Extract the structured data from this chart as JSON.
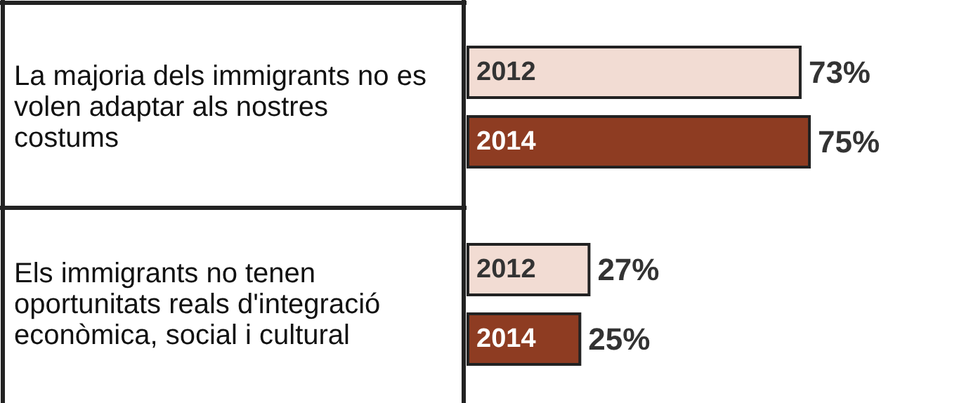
{
  "chart_data": {
    "type": "bar",
    "orientation": "horizontal",
    "categories": [
      "La majoria dels immigrants no es volen adaptar als nostres costums",
      "Els immigrants no tenen oportunitats reals d'integració econòmica, social i cultural"
    ],
    "series": [
      {
        "name": "2012",
        "color": "#f2dcd3",
        "values": [
          73,
          27
        ],
        "value_labels": [
          "73%",
          "27%"
        ]
      },
      {
        "name": "2014",
        "color": "#8e3c22",
        "values": [
          75,
          25
        ],
        "value_labels": [
          "75%",
          "25%"
        ]
      }
    ],
    "legend": false
  }
}
